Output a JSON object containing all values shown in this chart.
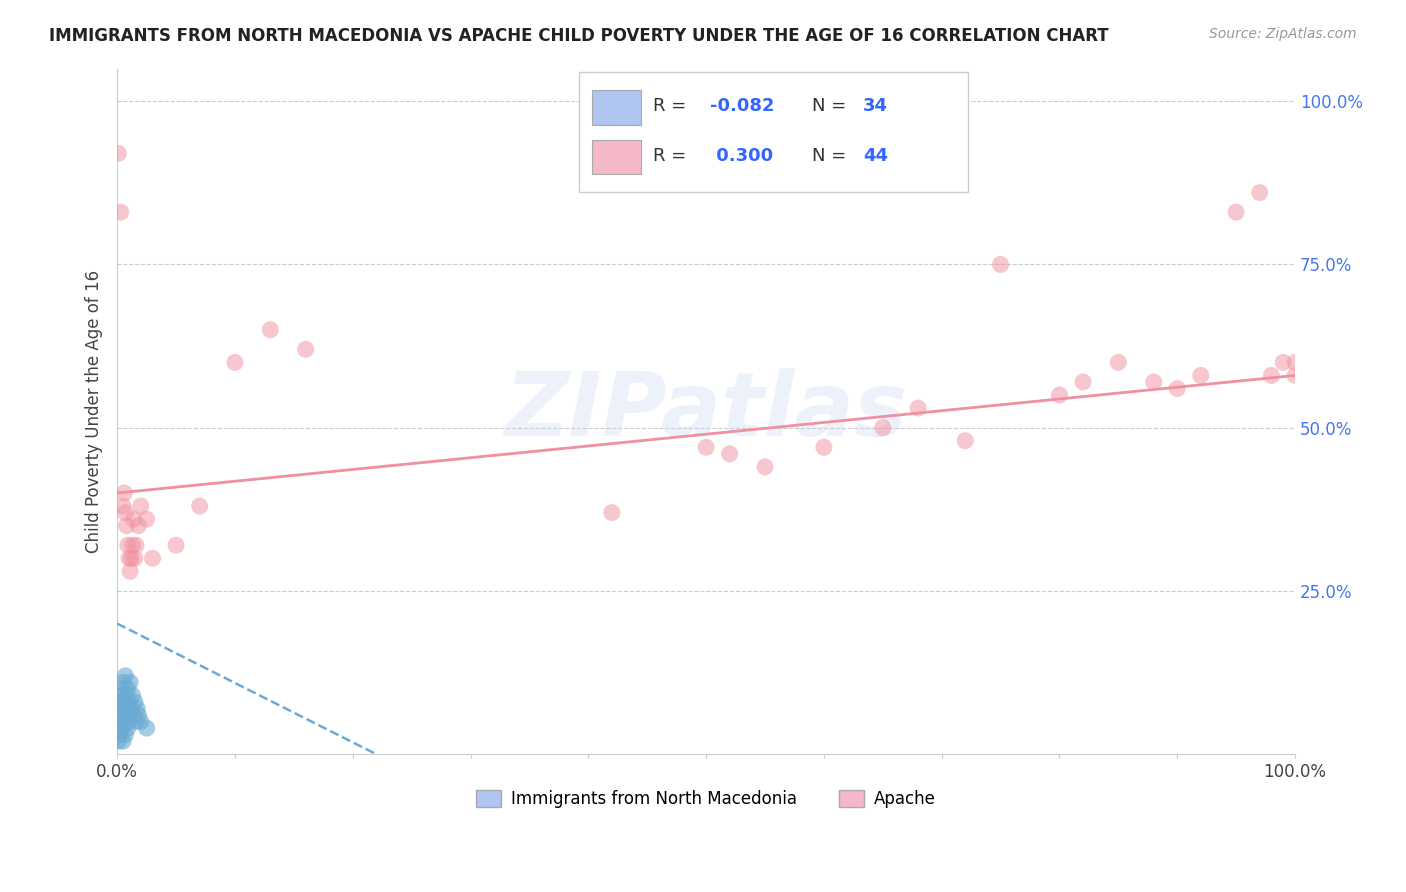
{
  "title": "IMMIGRANTS FROM NORTH MACEDONIA VS APACHE CHILD POVERTY UNDER THE AGE OF 16 CORRELATION CHART",
  "source": "Source: ZipAtlas.com",
  "ylabel": "Child Poverty Under the Age of 16",
  "xlim": [
    0,
    1
  ],
  "ylim": [
    0,
    1.05
  ],
  "color_blue": "#6aaad4",
  "color_pink": "#f090a0",
  "legend_color1": "#aec6f0",
  "legend_color2": "#f5b8c8",
  "background_color": "#ffffff",
  "grid_color": "#cccccc",
  "watermark": "ZIPatlas",
  "tick_color": "#4477ee",
  "blue_scatter_x": [
    0.001,
    0.001,
    0.002,
    0.002,
    0.002,
    0.003,
    0.003,
    0.003,
    0.004,
    0.004,
    0.005,
    0.005,
    0.005,
    0.006,
    0.006,
    0.007,
    0.007,
    0.007,
    0.008,
    0.008,
    0.009,
    0.009,
    0.01,
    0.01,
    0.011,
    0.012,
    0.013,
    0.014,
    0.015,
    0.016,
    0.017,
    0.018,
    0.02,
    0.025
  ],
  "blue_scatter_y": [
    0.02,
    0.04,
    0.03,
    0.06,
    0.08,
    0.05,
    0.07,
    0.1,
    0.04,
    0.09,
    0.02,
    0.06,
    0.11,
    0.05,
    0.08,
    0.03,
    0.07,
    0.12,
    0.06,
    0.09,
    0.04,
    0.1,
    0.05,
    0.08,
    0.11,
    0.07,
    0.09,
    0.06,
    0.08,
    0.05,
    0.07,
    0.06,
    0.05,
    0.04
  ],
  "pink_scatter_x": [
    0.001,
    0.003,
    0.005,
    0.006,
    0.007,
    0.008,
    0.009,
    0.01,
    0.011,
    0.012,
    0.013,
    0.014,
    0.015,
    0.016,
    0.018,
    0.02,
    0.025,
    0.03,
    0.05,
    0.07,
    0.1,
    0.13,
    0.16,
    0.42,
    0.5,
    0.52,
    0.55,
    0.6,
    0.65,
    0.68,
    0.72,
    0.75,
    0.8,
    0.82,
    0.85,
    0.88,
    0.9,
    0.92,
    0.95,
    0.97,
    0.98,
    0.99,
    1.0,
    1.0
  ],
  "pink_scatter_y": [
    0.92,
    0.83,
    0.38,
    0.4,
    0.37,
    0.35,
    0.32,
    0.3,
    0.28,
    0.3,
    0.32,
    0.36,
    0.3,
    0.32,
    0.35,
    0.38,
    0.36,
    0.3,
    0.32,
    0.38,
    0.6,
    0.65,
    0.62,
    0.37,
    0.47,
    0.46,
    0.44,
    0.47,
    0.5,
    0.53,
    0.48,
    0.75,
    0.55,
    0.57,
    0.6,
    0.57,
    0.56,
    0.58,
    0.83,
    0.86,
    0.58,
    0.6,
    0.58,
    0.6
  ],
  "blue_line_x": [
    0.0,
    0.22
  ],
  "blue_line_y": [
    0.2,
    0.0
  ],
  "pink_line_x": [
    0.0,
    1.0
  ],
  "pink_line_y": [
    0.4,
    0.58
  ],
  "xtick_positions": [
    0.0,
    0.1,
    0.2,
    0.3,
    0.4,
    0.5,
    0.6,
    0.7,
    0.8,
    0.9,
    1.0
  ],
  "ytick_labels": [
    "",
    "25.0%",
    "50.0%",
    "75.0%",
    "100.0%"
  ]
}
